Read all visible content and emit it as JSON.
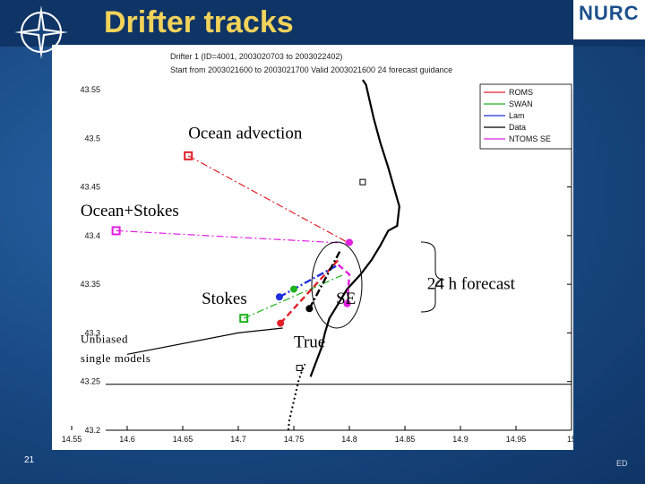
{
  "slide": {
    "title": "Drifter tracks",
    "page_number": "21",
    "footer_tag": "ED",
    "logo_text": "NURC"
  },
  "colors": {
    "background": "#1b4f8a",
    "title": "#f2d35a",
    "roms": "#e0202a",
    "swan": "#1db31d",
    "lam": "#1f2fe0",
    "data": "#000000",
    "ntoms_se": "#e020e0"
  },
  "chart_data": {
    "type": "line",
    "header_lines": [
      "Drifter 1 (ID=4001, 2003020703 to 2003022402)",
      "Start from 2003021600 to 2003021700 Valid 2003021600 24 forecast guidance"
    ],
    "xlim": [
      14.55,
      15
    ],
    "ylim": [
      43.2,
      43.55
    ],
    "xticks": [
      "14.55",
      "14.6",
      "14.65",
      "14.7",
      "14.75",
      "14.8",
      "14.85",
      "14.9",
      "14.95",
      "15"
    ],
    "yticks": [
      "43.2",
      "43.25",
      "43.3",
      "43.35",
      "43.4",
      "43.45",
      "43.5",
      "43.55"
    ],
    "legend": {
      "placement": "top-right",
      "entries": [
        "ROMS",
        "SWAN",
        "Lam",
        "Data",
        "NTOMS SE"
      ]
    },
    "series": [
      {
        "name": "Data",
        "style": "solid",
        "x": [
          14.765,
          14.77,
          14.775,
          14.778,
          14.782,
          14.79,
          14.798,
          14.81,
          14.82,
          14.828,
          14.835,
          14.843,
          14.845,
          14.84,
          14.835,
          14.828,
          14.822,
          14.818,
          14.815,
          14.812
        ],
        "y": [
          43.255,
          43.27,
          43.285,
          43.3,
          43.315,
          43.33,
          43.345,
          43.36,
          43.375,
          43.39,
          43.405,
          43.41,
          43.43,
          43.45,
          43.47,
          43.495,
          43.52,
          43.54,
          43.555,
          43.56
        ]
      },
      {
        "name": "Data-early",
        "style": "dotted",
        "x": [
          14.745,
          14.746,
          14.748,
          14.75,
          14.752,
          14.754,
          14.757,
          14.76
        ],
        "y": [
          43.2,
          43.21,
          43.22,
          43.23,
          43.24,
          43.25,
          43.26,
          43.268
        ]
      },
      {
        "name": "Unbiased",
        "style": "solid",
        "x": [
          14.6,
          14.7,
          14.74
        ],
        "y": [
          43.278,
          43.3,
          43.305
        ]
      },
      {
        "name": "Ocean advection",
        "style": "dashdot",
        "color_key": "roms",
        "x": [
          14.655,
          14.8
        ],
        "y": [
          43.482,
          43.392
        ]
      },
      {
        "name": "Ocean+Stokes",
        "style": "dashdot",
        "color_key": "ntoms_se",
        "x": [
          14.59,
          14.8
        ],
        "y": [
          43.405,
          43.392
        ]
      },
      {
        "name": "Stokes",
        "style": "dashdot",
        "color_key": "swan",
        "x": [
          14.705,
          14.795
        ],
        "y": [
          43.315,
          43.36
        ]
      },
      {
        "name": "ROMS",
        "style": "dashed",
        "color_key": "roms",
        "x": [
          14.738,
          14.79
        ],
        "y": [
          43.31,
          43.375
        ]
      },
      {
        "name": "Lam",
        "style": "dashdot",
        "color_key": "lam",
        "x": [
          14.737,
          14.79
        ],
        "y": [
          43.337,
          43.37
        ]
      },
      {
        "name": "SE",
        "style": "dashed",
        "color_key": "ntoms_se",
        "x": [
          14.79,
          14.8,
          14.798
        ],
        "y": [
          43.37,
          43.36,
          43.33
        ]
      },
      {
        "name": "True",
        "style": "dashdot",
        "color_key": "data",
        "x": [
          14.764,
          14.792
        ],
        "y": [
          43.325,
          43.385
        ]
      }
    ],
    "markers": [
      {
        "name": "Ocean advection start",
        "x": 14.655,
        "y": 43.482,
        "shape": "square",
        "color_key": "roms"
      },
      {
        "name": "Ocean+Stokes start",
        "x": 14.59,
        "y": 43.405,
        "shape": "square",
        "color_key": "ntoms_se"
      },
      {
        "name": "Stokes start",
        "x": 14.705,
        "y": 43.315,
        "shape": "square",
        "color_key": "swan"
      },
      {
        "name": "Data top",
        "x": 14.812,
        "y": 43.455,
        "shape": "square-open",
        "color_key": "data"
      },
      {
        "name": "Data bottom",
        "x": 14.755,
        "y": 43.264,
        "shape": "square-open",
        "color_key": "data"
      },
      {
        "name": "Common start",
        "x": 14.8,
        "y": 43.393,
        "shape": "dot",
        "color_key": "ntoms_se"
      },
      {
        "name": "ROMS end",
        "x": 14.738,
        "y": 43.31,
        "shape": "dot",
        "color_key": "roms"
      },
      {
        "name": "Lam end",
        "x": 14.737,
        "y": 43.337,
        "shape": "dot",
        "color_key": "lam"
      },
      {
        "name": "Stokes end",
        "x": 14.75,
        "y": 43.345,
        "shape": "dot",
        "color_key": "swan"
      },
      {
        "name": "True end",
        "x": 14.764,
        "y": 43.325,
        "shape": "dot",
        "color_key": "data"
      },
      {
        "name": "SE end",
        "x": 14.798,
        "y": 43.33,
        "shape": "dot",
        "color_key": "ntoms_se"
      }
    ],
    "annotations": [
      {
        "text": "Ocean advection",
        "x": 14.655,
        "y": 43.5
      },
      {
        "text": "Ocean+Stokes",
        "x": 14.558,
        "y": 43.42
      },
      {
        "text": "Stokes",
        "x": 14.667,
        "y": 43.33
      },
      {
        "text": "SE",
        "x": 14.788,
        "y": 43.33
      },
      {
        "text": "True",
        "x": 14.75,
        "y": 43.285
      },
      {
        "text": "24 h forecast",
        "x": 14.87,
        "y": 43.345
      },
      {
        "text": "Unbiased",
        "x": 14.558,
        "y": 43.29
      },
      {
        "text": "single models",
        "x": 14.558,
        "y": 43.27
      }
    ]
  }
}
